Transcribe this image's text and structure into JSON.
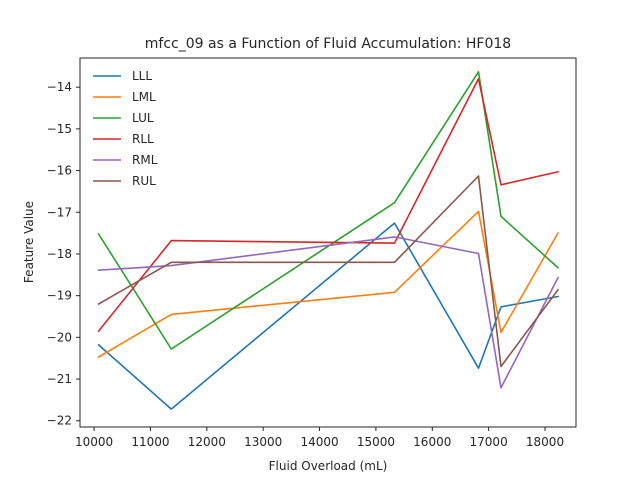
{
  "chart_data": {
    "type": "line",
    "title": "mfcc_09 as a Function of Fluid Accumulation: HF018",
    "xlabel": "Fluid Overload (mL)",
    "ylabel": "Feature Value",
    "xlim": [
      9750,
      18550
    ],
    "ylim": [
      -22.15,
      -13.3
    ],
    "xticks": [
      10000,
      11000,
      12000,
      13000,
      14000,
      15000,
      16000,
      17000,
      18000
    ],
    "xtick_labels": [
      "10000",
      "11000",
      "12000",
      "13000",
      "14000",
      "15000",
      "16000",
      "17000",
      "18000"
    ],
    "yticks": [
      -22,
      -21,
      -20,
      -19,
      -18,
      -17,
      -16,
      -15,
      -14
    ],
    "ytick_labels": [
      "−22",
      "−21",
      "−20",
      "−19",
      "−18",
      "−17",
      "−16",
      "−15",
      "−14"
    ],
    "grid": false,
    "legend_position": "top-left",
    "x": [
      10080,
      11370,
      15330,
      16820,
      17220,
      18230
    ],
    "series": [
      {
        "name": "LLL",
        "color": "#1f77b4",
        "values": [
          -20.18,
          -21.72,
          -17.26,
          -20.74,
          -19.27,
          -19.02
        ]
      },
      {
        "name": "LML",
        "color": "#ff7f0e",
        "values": [
          -20.47,
          -19.45,
          -18.92,
          -16.98,
          -19.88,
          -17.5
        ]
      },
      {
        "name": "LUL",
        "color": "#2ca02c",
        "values": [
          -17.52,
          -20.28,
          -16.77,
          -13.63,
          -17.1,
          -18.33
        ]
      },
      {
        "name": "RLL",
        "color": "#d62728",
        "values": [
          -19.85,
          -17.68,
          -17.74,
          -13.8,
          -16.34,
          -16.03
        ]
      },
      {
        "name": "RML",
        "color": "#9467bd",
        "values": [
          -18.39,
          -18.28,
          -17.59,
          -17.99,
          -21.21,
          -18.57
        ]
      },
      {
        "name": "RUL",
        "color": "#8c564b",
        "values": [
          -19.2,
          -18.2,
          -18.2,
          -16.13,
          -20.7,
          -18.86
        ]
      }
    ]
  }
}
